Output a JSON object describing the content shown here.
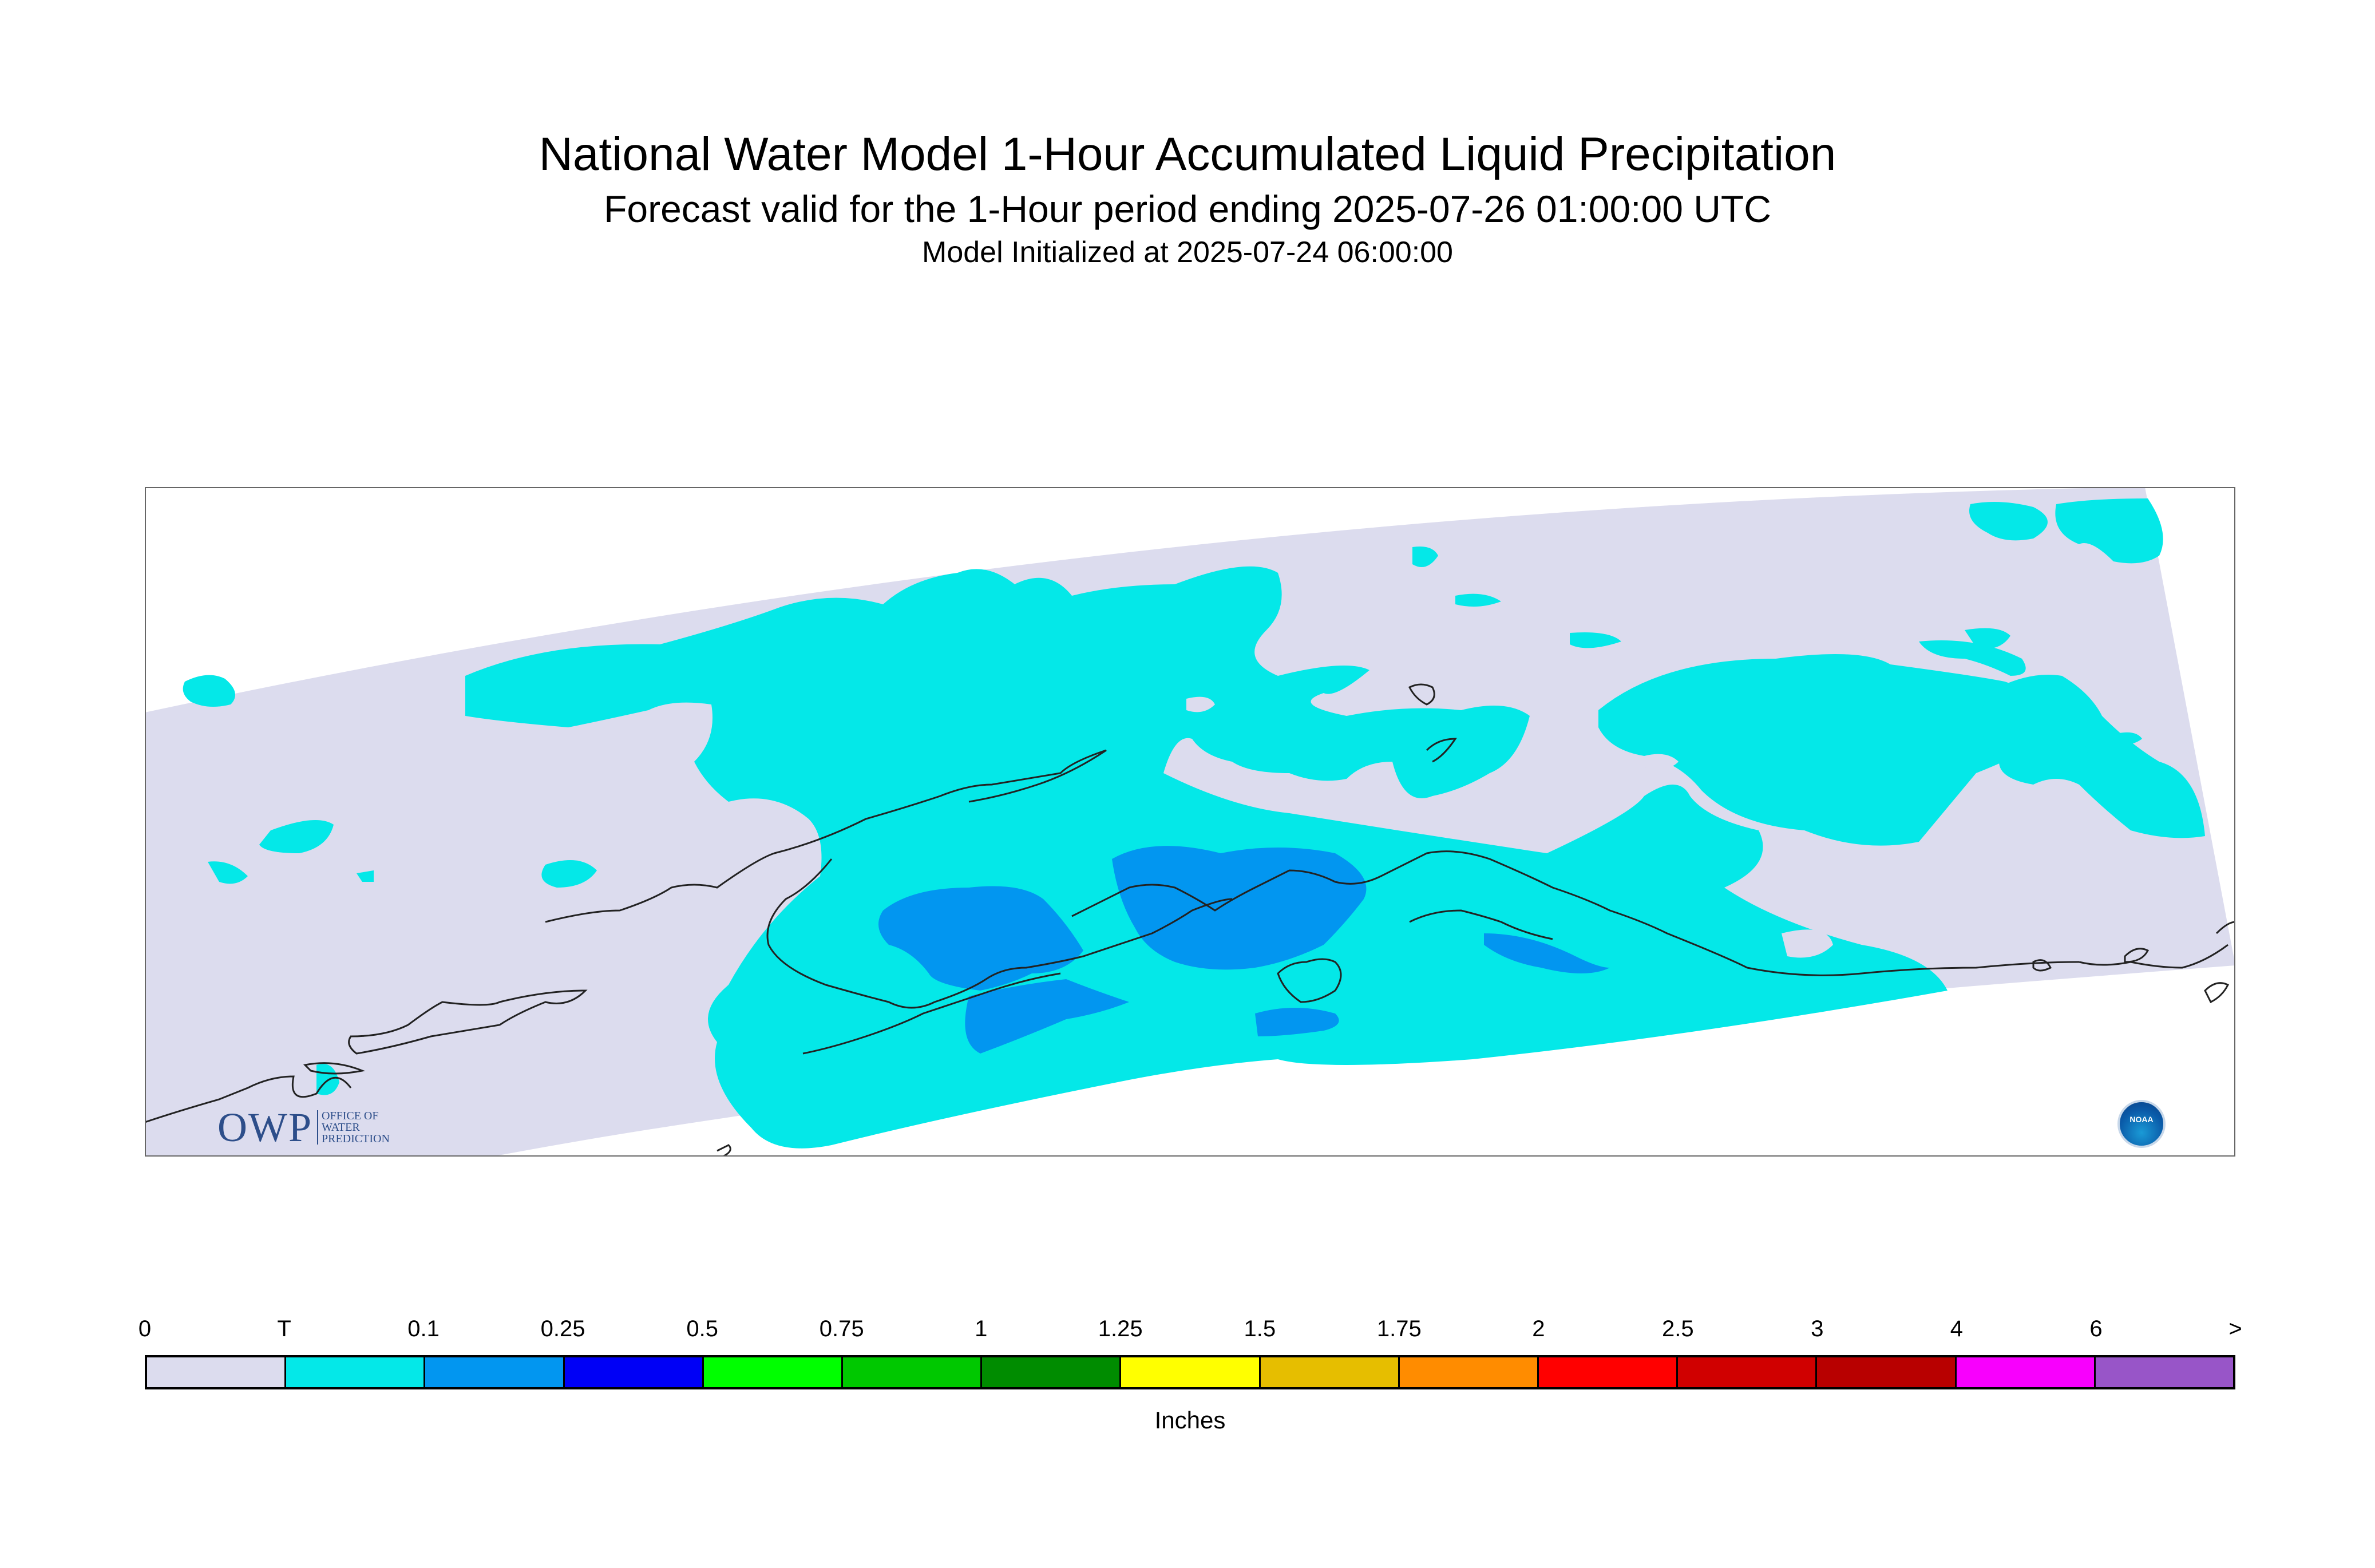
{
  "title": {
    "line1": "National Water Model 1-Hour Accumulated Liquid Precipitation",
    "line2": "Forecast valid for the 1-Hour period ending 2025-07-26 01:00:00 UTC",
    "line3": "Model Initialized at 2025-07-24 06:00:00"
  },
  "map": {
    "colors": {
      "domain": "#dcdcee",
      "trace": "#04e8e8",
      "p01": "#0296f0",
      "coast": "#222222",
      "frame": "#666666"
    }
  },
  "legend": {
    "ticks": [
      "0",
      "T",
      "0.1",
      "0.25",
      "0.5",
      "0.75",
      "1",
      "1.25",
      "1.5",
      "1.75",
      "2",
      "2.5",
      "3",
      "4",
      "6",
      ">"
    ],
    "colors": [
      "#dcdcee",
      "#04e8e8",
      "#0296f0",
      "#0000f6",
      "#00ff00",
      "#00c800",
      "#008c00",
      "#ffff00",
      "#e6be00",
      "#ff8c00",
      "#ff0000",
      "#d00000",
      "#b80000",
      "#f800fd",
      "#9855c8"
    ],
    "units": "Inches"
  },
  "logos": {
    "owp": "OWP",
    "owp_sub": [
      "OFFICE OF",
      "WATER",
      "PREDICTION"
    ],
    "noaa": "NOAA"
  }
}
